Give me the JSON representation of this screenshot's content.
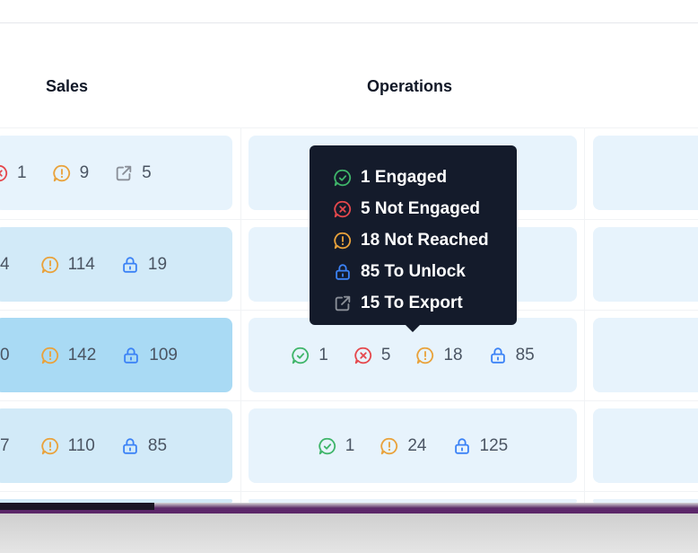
{
  "columns": {
    "sales": "Sales",
    "operations": "Operations"
  },
  "colors": {
    "engaged": "#3fb56a",
    "not_engaged": "#e5484d",
    "not_reached": "#e9a23b",
    "to_unlock": "#3b82f6",
    "to_export": "#8a8f98"
  },
  "rows": [
    {
      "sales": {
        "not_engaged": "1",
        "not_reached": "9",
        "to_export": "5"
      }
    },
    {
      "sales": {
        "cut": "4",
        "not_reached": "114",
        "to_unlock": "19"
      }
    },
    {
      "sales": {
        "cut": "0",
        "not_reached": "142",
        "to_unlock": "109"
      },
      "operations": {
        "engaged": "1",
        "not_engaged": "5",
        "not_reached": "18",
        "to_unlock": "85"
      }
    },
    {
      "sales": {
        "cut": "7",
        "not_reached": "110",
        "to_unlock": "85"
      },
      "operations": {
        "engaged": "1",
        "not_reached": "24",
        "to_unlock": "125"
      }
    }
  ],
  "tooltip": {
    "engaged": "1 Engaged",
    "not_engaged": "5 Not Engaged",
    "not_reached": "18 Not Reached",
    "to_unlock": "85 To Unlock",
    "to_export": "15 To Export"
  }
}
